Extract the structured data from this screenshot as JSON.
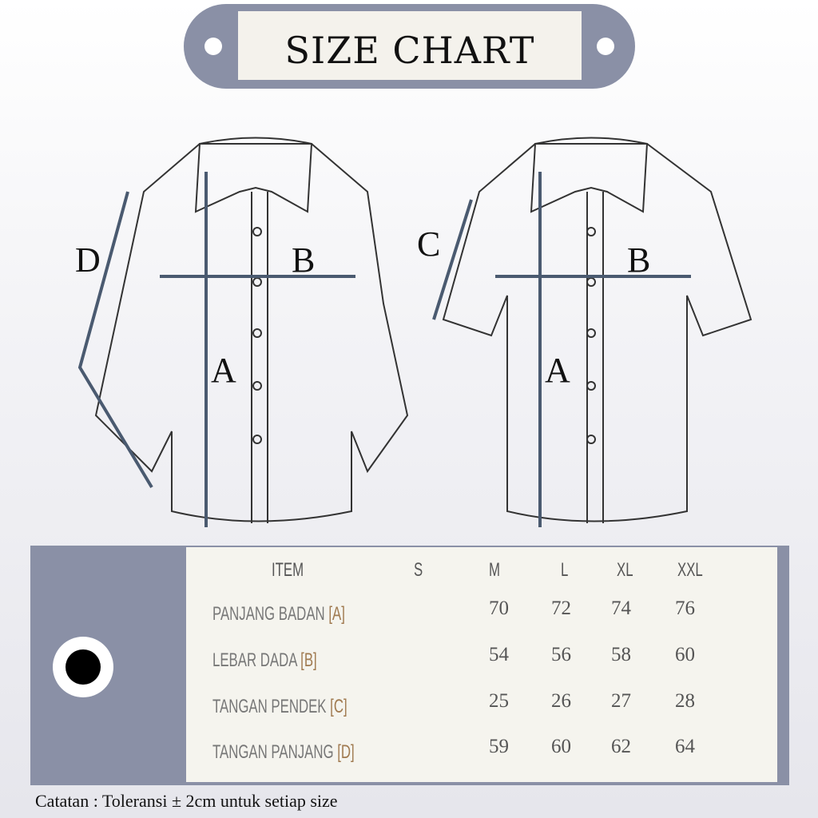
{
  "header": {
    "title": "SIZE CHART"
  },
  "diagram": {
    "long_sleeve_labels": {
      "a": "A",
      "b": "B",
      "d": "D"
    },
    "short_sleeve_labels": {
      "a": "A",
      "b": "B",
      "c": "C"
    },
    "colors": {
      "measure_line": "#4a5a70",
      "tag": "#8a90a6"
    }
  },
  "table": {
    "headers": [
      "ITEM",
      "S",
      "M",
      "L",
      "XL",
      "XXL"
    ],
    "rows": [
      {
        "item": "PANJANG BADAN",
        "code": "[A]",
        "values": [
          "",
          "70",
          "72",
          "74",
          "76"
        ]
      },
      {
        "item": "LEBAR DADA",
        "code": "[B]",
        "values": [
          "",
          "54",
          "56",
          "58",
          "60"
        ]
      },
      {
        "item": "TANGAN PENDEK",
        "code": "[C]",
        "values": [
          "",
          "25",
          "26",
          "27",
          "28"
        ]
      },
      {
        "item": "TANGAN PANJANG",
        "code": "[D]",
        "values": [
          "",
          "59",
          "60",
          "62",
          "64"
        ]
      }
    ]
  },
  "note": "Catatan : Toleransi  ± 2cm untuk setiap size"
}
